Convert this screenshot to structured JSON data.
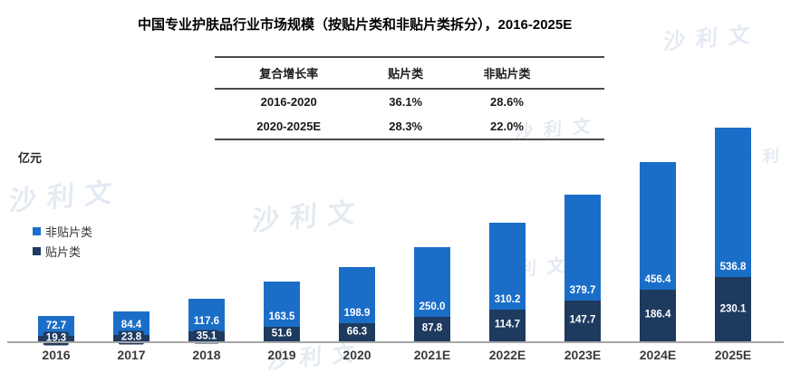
{
  "title": "中国专业护肤品行业市场规模（按贴片类和非贴片类拆分），2016-2025E",
  "unit_label": "亿元",
  "watermark": {
    "text": "沙利文"
  },
  "table": {
    "headers": [
      "复合增长率",
      "贴片类",
      "非贴片类"
    ],
    "rows": [
      {
        "period": "2016-2020",
        "patch": "36.1%",
        "non_patch": "28.6%"
      },
      {
        "period": "2020-2025E",
        "patch": "28.3%",
        "non_patch": "22.0%"
      }
    ]
  },
  "legend": [
    {
      "label": "非贴片类",
      "color": "#1B6EC8"
    },
    {
      "label": "贴片类",
      "color": "#1E3A5F"
    }
  ],
  "chart_data": {
    "type": "bar",
    "stacked": true,
    "title": "中国专业护肤品行业市场规模（按贴片类和非贴片类拆分），2016-2025E",
    "xlabel": "",
    "ylabel": "亿元",
    "ylim": [
      0,
      800
    ],
    "grid": false,
    "legend_position": "left",
    "categories": [
      "2016",
      "2017",
      "2018",
      "2019",
      "2020",
      "2021E",
      "2022E",
      "2023E",
      "2024E",
      "2025E"
    ],
    "series": [
      {
        "name": "贴片类",
        "color": "#1E3A5F",
        "values": [
          19.3,
          23.8,
          35.1,
          51.6,
          66.3,
          87.8,
          114.7,
          147.7,
          186.4,
          230.1
        ]
      },
      {
        "name": "非贴片类",
        "color": "#1B6EC8",
        "values": [
          72.7,
          84.4,
          117.6,
          163.5,
          198.9,
          250.0,
          310.2,
          379.7,
          456.4,
          536.8
        ]
      }
    ]
  }
}
